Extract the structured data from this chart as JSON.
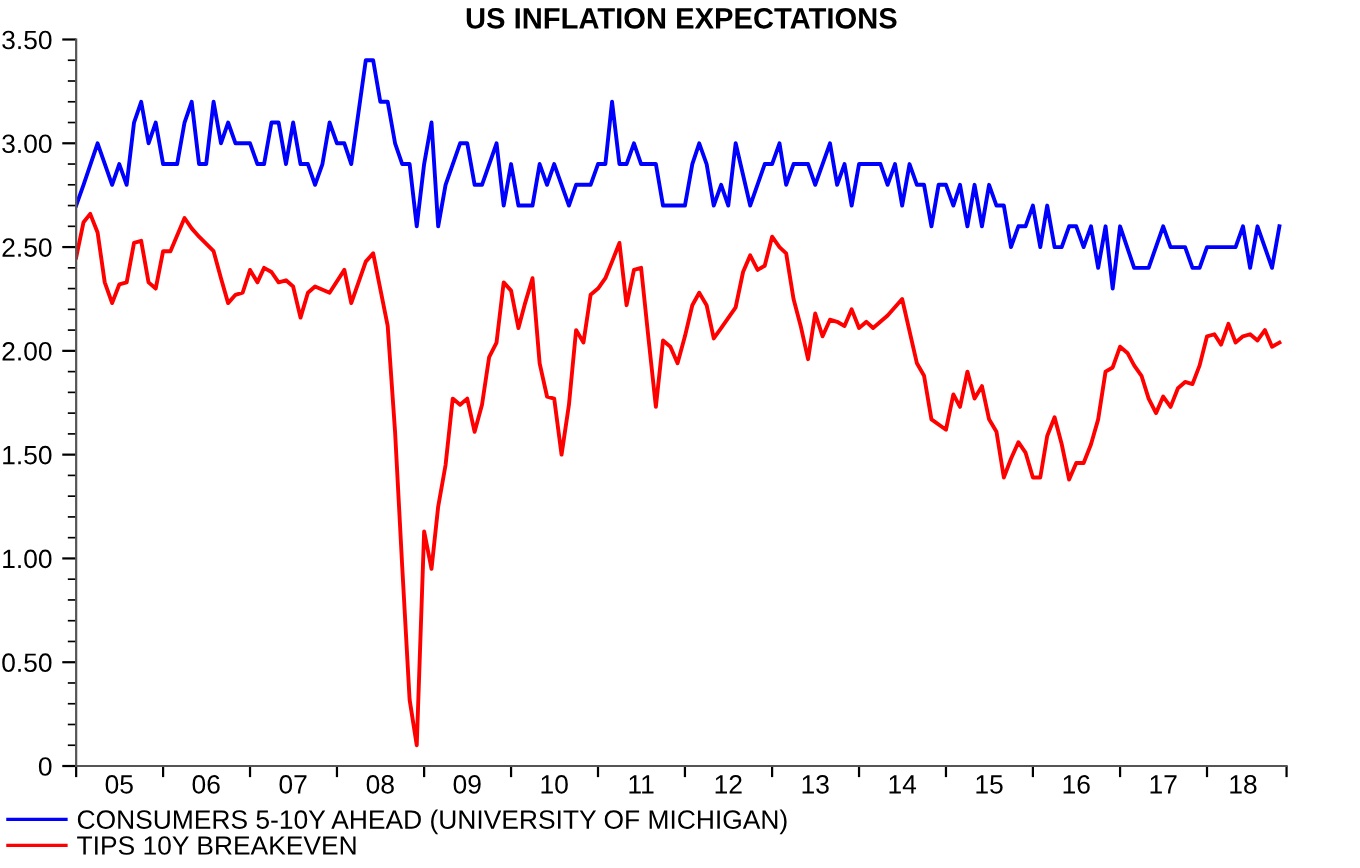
{
  "chart_data": {
    "type": "line",
    "title": "US INFLATION EXPECTATIONS",
    "series": [
      {
        "name": "CONSUMERS 5-10Y AHEAD (UNIVERSITY OF MICHIGAN)",
        "color": "#0000ff",
        "x": [
          "2005-01",
          "2005-02",
          "2005-04",
          "2005-06",
          "2005-07",
          "2005-08",
          "2005-09",
          "2005-10",
          "2005-11",
          "2005-12",
          "2006-01",
          "2006-03",
          "2006-04",
          "2006-05",
          "2006-06",
          "2006-07",
          "2006-08",
          "2006-09",
          "2006-10",
          "2006-11",
          "2007-01",
          "2007-02",
          "2007-03",
          "2007-04",
          "2007-05",
          "2007-06",
          "2007-07",
          "2007-08",
          "2007-09",
          "2007-10",
          "2007-11",
          "2007-12",
          "2008-01",
          "2008-02",
          "2008-03",
          "2008-05",
          "2008-06",
          "2008-07",
          "2008-08",
          "2008-09",
          "2008-10",
          "2008-11",
          "2008-12",
          "2009-01",
          "2009-02",
          "2009-03",
          "2009-04",
          "2009-06",
          "2009-07",
          "2009-08",
          "2009-09",
          "2009-11",
          "2009-12",
          "2010-01",
          "2010-02",
          "2010-04",
          "2010-05",
          "2010-06",
          "2010-07",
          "2010-09",
          "2010-10",
          "2010-12",
          "2011-01",
          "2011-02",
          "2011-03",
          "2011-04",
          "2011-05",
          "2011-06",
          "2011-07",
          "2011-09",
          "2011-10",
          "2012-01",
          "2012-02",
          "2012-03",
          "2012-04",
          "2012-05",
          "2012-06",
          "2012-07",
          "2012-08",
          "2012-10",
          "2012-12",
          "2013-01",
          "2013-02",
          "2013-03",
          "2013-04",
          "2013-06",
          "2013-07",
          "2013-09",
          "2013-10",
          "2013-11",
          "2013-12",
          "2014-01",
          "2014-04",
          "2014-05",
          "2014-06",
          "2014-07",
          "2014-08",
          "2014-09",
          "2014-10",
          "2014-11",
          "2014-12",
          "2015-01",
          "2015-02",
          "2015-03",
          "2015-04",
          "2015-05",
          "2015-06",
          "2015-07",
          "2015-08",
          "2015-09",
          "2015-10",
          "2015-11",
          "2015-12",
          "2016-01",
          "2016-02",
          "2016-03",
          "2016-04",
          "2016-05",
          "2016-06",
          "2016-07",
          "2016-08",
          "2016-09",
          "2016-10",
          "2016-11",
          "2016-12",
          "2017-01",
          "2017-03",
          "2017-05",
          "2017-07",
          "2017-08",
          "2017-10",
          "2017-11",
          "2017-12",
          "2018-01",
          "2018-05",
          "2018-06",
          "2018-07",
          "2018-08",
          "2018-10",
          "2018-11"
        ],
        "values": [
          2.7,
          2.8,
          3.0,
          2.8,
          2.9,
          2.8,
          3.1,
          3.2,
          3.0,
          3.1,
          2.9,
          2.9,
          3.1,
          3.2,
          2.9,
          2.9,
          3.2,
          3.0,
          3.1,
          3.0,
          3.0,
          2.9,
          2.9,
          3.1,
          3.1,
          2.9,
          3.1,
          2.9,
          2.9,
          2.8,
          2.9,
          3.1,
          3.0,
          3.0,
          2.9,
          3.4,
          3.4,
          3.2,
          3.2,
          3.0,
          2.9,
          2.9,
          2.6,
          2.9,
          3.1,
          2.6,
          2.8,
          3.0,
          3.0,
          2.8,
          2.8,
          3.0,
          2.7,
          2.9,
          2.7,
          2.7,
          2.9,
          2.8,
          2.9,
          2.7,
          2.8,
          2.8,
          2.9,
          2.9,
          3.2,
          2.9,
          2.9,
          3.0,
          2.9,
          2.9,
          2.7,
          2.7,
          2.9,
          3.0,
          2.9,
          2.7,
          2.8,
          2.7,
          3.0,
          2.7,
          2.9,
          2.9,
          3.0,
          2.8,
          2.9,
          2.9,
          2.8,
          3.0,
          2.8,
          2.9,
          2.7,
          2.9,
          2.9,
          2.8,
          2.9,
          2.7,
          2.9,
          2.8,
          2.8,
          2.6,
          2.8,
          2.8,
          2.7,
          2.8,
          2.6,
          2.8,
          2.6,
          2.8,
          2.7,
          2.7,
          2.5,
          2.6,
          2.6,
          2.7,
          2.5,
          2.7,
          2.5,
          2.5,
          2.6,
          2.6,
          2.5,
          2.6,
          2.4,
          2.6,
          2.3,
          2.6,
          2.4,
          2.4,
          2.6,
          2.5,
          2.5,
          2.4,
          2.4,
          2.5,
          2.5,
          2.6,
          2.4,
          2.6,
          2.4,
          2.6
        ]
      },
      {
        "name": "TIPS 10Y BREAKEVEN",
        "color": "#ff0000",
        "x": [
          "2005-01",
          "2005-02",
          "2005-03",
          "2005-04",
          "2005-05",
          "2005-06",
          "2005-07",
          "2005-08",
          "2005-09",
          "2005-10",
          "2005-11",
          "2005-12",
          "2006-01",
          "2006-02",
          "2006-04",
          "2006-05",
          "2006-06",
          "2006-08",
          "2006-09",
          "2006-10",
          "2006-11",
          "2006-12",
          "2007-01",
          "2007-02",
          "2007-03",
          "2007-04",
          "2007-05",
          "2007-06",
          "2007-07",
          "2007-08",
          "2007-09",
          "2007-10",
          "2007-12",
          "2008-02",
          "2008-03",
          "2008-05",
          "2008-06",
          "2008-08",
          "2008-09",
          "2008-10",
          "2008-11",
          "2008-12",
          "2009-01",
          "2009-02",
          "2009-03",
          "2009-04",
          "2009-05",
          "2009-06",
          "2009-07",
          "2009-08",
          "2009-09",
          "2009-10",
          "2009-11",
          "2009-12",
          "2010-01",
          "2010-02",
          "2010-03",
          "2010-04",
          "2010-05",
          "2010-06",
          "2010-07",
          "2010-08",
          "2010-09",
          "2010-10",
          "2010-11",
          "2010-12",
          "2011-01",
          "2011-02",
          "2011-03",
          "2011-04",
          "2011-05",
          "2011-06",
          "2011-07",
          "2011-08",
          "2011-09",
          "2011-10",
          "2011-11",
          "2011-12",
          "2012-01",
          "2012-02",
          "2012-03",
          "2012-04",
          "2012-05",
          "2012-06",
          "2012-08",
          "2012-09",
          "2012-10",
          "2012-11",
          "2012-12",
          "2013-01",
          "2013-02",
          "2013-03",
          "2013-04",
          "2013-05",
          "2013-06",
          "2013-07",
          "2013-08",
          "2013-09",
          "2013-10",
          "2013-11",
          "2013-12",
          "2014-01",
          "2014-02",
          "2014-03",
          "2014-05",
          "2014-07",
          "2014-09",
          "2014-10",
          "2014-11",
          "2015-01",
          "2015-02",
          "2015-03",
          "2015-04",
          "2015-05",
          "2015-06",
          "2015-07",
          "2015-08",
          "2015-09",
          "2015-10",
          "2015-11",
          "2015-12",
          "2016-01",
          "2016-02",
          "2016-03",
          "2016-04",
          "2016-05",
          "2016-06",
          "2016-07",
          "2016-08",
          "2016-09",
          "2016-10",
          "2016-11",
          "2016-12",
          "2017-01",
          "2017-02",
          "2017-03",
          "2017-04",
          "2017-05",
          "2017-06",
          "2017-07",
          "2017-08",
          "2017-09",
          "2017-10",
          "2017-11",
          "2017-12",
          "2018-01",
          "2018-02",
          "2018-03",
          "2018-04",
          "2018-05",
          "2018-06",
          "2018-07",
          "2018-08",
          "2018-09",
          "2018-10",
          "2018-11"
        ],
        "values": [
          2.45,
          2.62,
          2.66,
          2.57,
          2.33,
          2.23,
          2.32,
          2.33,
          2.52,
          2.53,
          2.33,
          2.3,
          2.48,
          2.48,
          2.64,
          2.59,
          2.55,
          2.48,
          2.35,
          2.23,
          2.27,
          2.28,
          2.39,
          2.33,
          2.4,
          2.38,
          2.33,
          2.34,
          2.31,
          2.16,
          2.28,
          2.31,
          2.28,
          2.39,
          2.23,
          2.43,
          2.47,
          2.12,
          1.61,
          0.96,
          0.32,
          0.1,
          1.13,
          0.95,
          1.25,
          1.45,
          1.77,
          1.74,
          1.77,
          1.61,
          1.74,
          1.97,
          2.04,
          2.33,
          2.29,
          2.11,
          2.23,
          2.35,
          1.94,
          1.78,
          1.77,
          1.5,
          1.74,
          2.1,
          2.04,
          2.27,
          2.3,
          2.35,
          2.43,
          2.52,
          2.22,
          2.39,
          2.4,
          2.06,
          1.73,
          2.05,
          2.02,
          1.94,
          2.07,
          2.22,
          2.28,
          2.22,
          2.06,
          2.11,
          2.21,
          2.38,
          2.46,
          2.39,
          2.41,
          2.55,
          2.5,
          2.47,
          2.25,
          2.12,
          1.96,
          2.18,
          2.07,
          2.15,
          2.14,
          2.12,
          2.2,
          2.11,
          2.14,
          2.11,
          2.17,
          2.25,
          1.94,
          1.88,
          1.67,
          1.62,
          1.79,
          1.73,
          1.9,
          1.77,
          1.83,
          1.67,
          1.61,
          1.39,
          1.48,
          1.56,
          1.51,
          1.39,
          1.39,
          1.59,
          1.68,
          1.55,
          1.38,
          1.46,
          1.46,
          1.55,
          1.67,
          1.9,
          1.92,
          2.02,
          1.99,
          1.93,
          1.88,
          1.77,
          1.7,
          1.78,
          1.73,
          1.82,
          1.85,
          1.84,
          1.93,
          2.07,
          2.08,
          2.03,
          2.13,
          2.04,
          2.07,
          2.08,
          2.05,
          2.1,
          2.02,
          2.04
        ]
      }
    ],
    "xlim": [
      "2005-01",
      "2018-12"
    ],
    "xticks": [
      {
        "value": "2005",
        "label": null
      },
      {
        "value": "2006",
        "label": null
      },
      {
        "value": "2007",
        "label": null
      },
      {
        "value": "2008",
        "label": null
      },
      {
        "value": "2009",
        "label": null
      },
      {
        "value": "2010",
        "label": null
      },
      {
        "value": "2011",
        "label": null
      },
      {
        "value": "2012",
        "label": null
      },
      {
        "value": "2013",
        "label": null
      },
      {
        "value": "2014",
        "label": null
      },
      {
        "value": "2015",
        "label": null
      },
      {
        "value": "2016",
        "label": null
      },
      {
        "value": "2017",
        "label": null
      },
      {
        "value": "2018",
        "label": null
      },
      {
        "value": "2018-12",
        "label": null
      },
      {
        "value": "2005-07",
        "label": "05"
      },
      {
        "value": "2006-07",
        "label": "06"
      },
      {
        "value": "2007-07",
        "label": "07"
      },
      {
        "value": "2008-07",
        "label": "08"
      },
      {
        "value": "2009-07",
        "label": "09"
      },
      {
        "value": "2010-07",
        "label": "10"
      },
      {
        "value": "2011-07",
        "label": "11"
      },
      {
        "value": "2012-07",
        "label": "12"
      },
      {
        "value": "2013-07",
        "label": "13"
      },
      {
        "value": "2014-07",
        "label": "14"
      },
      {
        "value": "2015-07",
        "label": "15"
      },
      {
        "value": "2016-07",
        "label": "16"
      },
      {
        "value": "2017-07",
        "label": "17"
      },
      {
        "value": "2018-06",
        "label": "18"
      }
    ],
    "ylim": [
      0,
      3.5
    ],
    "yticks": [
      0,
      {
        "value": 0.5,
        "label": "0.50"
      },
      {
        "value": 1,
        "label": "1.00"
      },
      {
        "value": 1.5,
        "label": "1.50"
      },
      {
        "value": 2,
        "label": "2.00"
      },
      {
        "value": 2.5,
        "label": "2.50"
      },
      {
        "value": 3,
        "label": "3.00"
      },
      {
        "value": 3.5,
        "label": "3.50"
      },
      {
        "value": 0.1,
        "label": null
      },
      {
        "value": 0.2,
        "label": null
      },
      {
        "value": 0.3,
        "label": null
      },
      {
        "value": 0.4,
        "label": null
      },
      {
        "value": 0.6,
        "label": null
      },
      {
        "value": 0.7,
        "label": null
      },
      {
        "value": 0.8,
        "label": null
      },
      {
        "value": 0.9,
        "label": null
      },
      {
        "value": 1.1,
        "label": null
      },
      {
        "value": 1.2,
        "label": null
      },
      {
        "value": 1.3,
        "label": null
      },
      {
        "value": 1.4,
        "label": null
      },
      {
        "value": 1.6,
        "label": null
      },
      {
        "value": 1.7,
        "label": null
      },
      {
        "value": 1.8,
        "label": null
      },
      {
        "value": 1.9,
        "label": null
      },
      {
        "value": 2.1,
        "label": null
      },
      {
        "value": 2.2,
        "label": null
      },
      {
        "value": 2.3,
        "label": null
      },
      {
        "value": 2.4,
        "label": null
      },
      {
        "value": 2.6,
        "label": null
      },
      {
        "value": 2.7,
        "label": null
      },
      {
        "value": 2.8,
        "label": null
      },
      {
        "value": 2.9,
        "label": null
      },
      {
        "value": 3.1,
        "label": null
      },
      {
        "value": 3.2,
        "label": null
      },
      {
        "value": 3.3,
        "label": null
      },
      {
        "value": 3.4,
        "label": null
      }
    ],
    "grid": false,
    "legend": "bottom left"
  }
}
